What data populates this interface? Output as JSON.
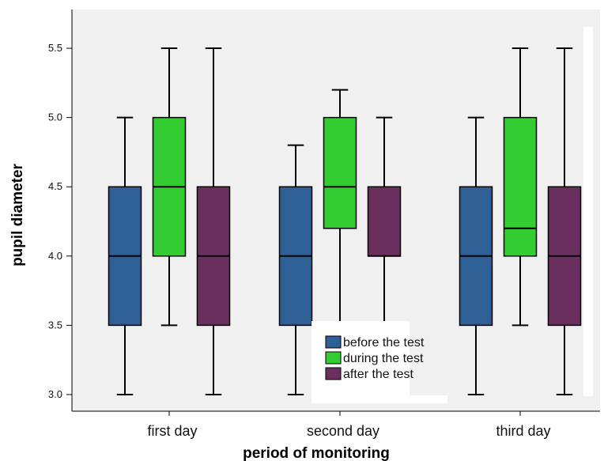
{
  "chart_data": {
    "type": "boxplot",
    "xlabel": "period of monitoring",
    "ylabel": "pupil diameter",
    "categories": [
      "first day",
      "second day",
      "third day"
    ],
    "y_ticks": [
      "3.0",
      "3.5",
      "4.0",
      "4.5",
      "5.0",
      "5.5"
    ],
    "ylim": [
      2.88,
      5.78
    ],
    "grid": false,
    "legend_position": "bottom-center",
    "series": [
      {
        "name": "before the test",
        "color": "#2e5f95",
        "boxes": [
          {
            "min": 3.0,
            "q1": 3.5,
            "median": 4.0,
            "q3": 4.5,
            "max": 5.0
          },
          {
            "min": 3.0,
            "q1": 3.5,
            "median": 4.0,
            "q3": 4.5,
            "max": 4.8
          },
          {
            "min": 3.0,
            "q1": 3.5,
            "median": 4.0,
            "q3": 4.5,
            "max": 5.0
          }
        ]
      },
      {
        "name": "during the test",
        "color": "#33cc33",
        "boxes": [
          {
            "min": 3.5,
            "q1": 4.0,
            "median": 4.5,
            "q3": 5.0,
            "max": 5.5
          },
          {
            "min": 3.5,
            "q1": 4.2,
            "median": 4.5,
            "q3": 5.0,
            "max": 5.2
          },
          {
            "min": 3.5,
            "q1": 4.0,
            "median": 4.2,
            "q3": 5.0,
            "max": 5.5
          }
        ]
      },
      {
        "name": "after the test",
        "color": "#6b2f5f",
        "boxes": [
          {
            "min": 3.0,
            "q1": 3.5,
            "median": 4.0,
            "q3": 4.5,
            "max": 5.5
          },
          {
            "min": 3.5,
            "q1": 4.0,
            "median": 4.0,
            "q3": 4.5,
            "max": 5.0
          },
          {
            "min": 3.0,
            "q1": 3.5,
            "median": 4.0,
            "q3": 4.5,
            "max": 5.5
          }
        ]
      }
    ]
  }
}
